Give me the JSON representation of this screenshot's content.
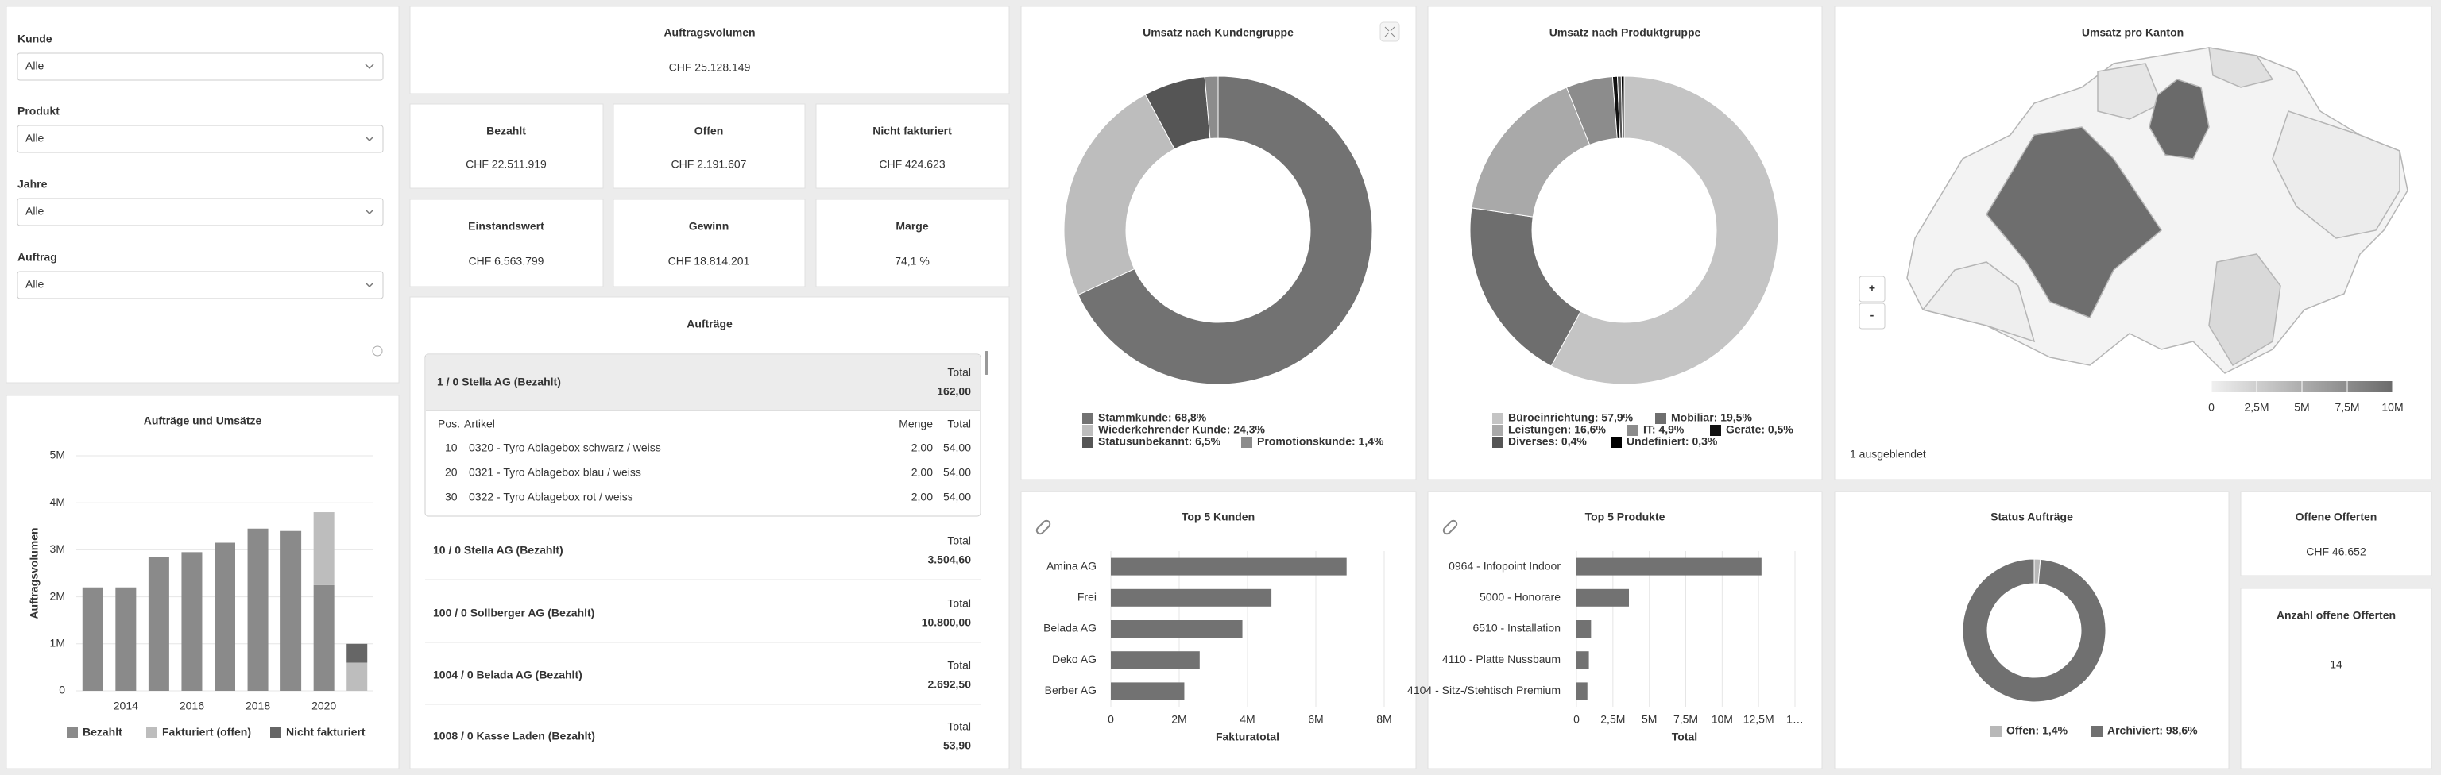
{
  "filters": [
    {
      "label": "Kunde",
      "placeholder": "Alle"
    },
    {
      "label": "Produkt",
      "placeholder": "Alle"
    },
    {
      "label": "Jahre",
      "placeholder": "Alle"
    },
    {
      "label": "Auftrag",
      "placeholder": "Alle"
    }
  ],
  "kpis": [
    {
      "title": "Auftragsvolumen",
      "value": "CHF 25.128.149"
    },
    {
      "title": "Bezahlt",
      "value": "CHF 22.511.919"
    },
    {
      "title": "Offen",
      "value": "CHF 2.191.607"
    },
    {
      "title": "Nicht fakturiert",
      "value": "CHF 424.623"
    },
    {
      "title": "Einstandswert",
      "value": "CHF 6.563.799"
    },
    {
      "title": "Gewinn",
      "value": "CHF 18.814.201"
    },
    {
      "title": "Marge",
      "value": "74,1 %"
    },
    {
      "title": "Offene Offerten",
      "value": "CHF 46.652"
    },
    {
      "title": "Anzahl offene Offerten",
      "value": 14
    }
  ],
  "orders": {
    "title": "Aufträge",
    "items": [
      {
        "title": "1 / 0 Stella AG (Bezahlt)",
        "total_label": "Total",
        "total": "162,00",
        "columns": [
          "Pos.",
          "Artikel",
          "Menge",
          "Total"
        ],
        "rows": [
          [
            "10",
            "0320 - Tyro Ablagebox schwarz / weiss",
            "2,00",
            "54,00"
          ],
          [
            "20",
            "0321 - Tyro Ablagebox blau / weiss",
            "2,00",
            "54,00"
          ],
          [
            "30",
            "0322 - Tyro Ablagebox rot / weiss",
            "2,00",
            "54,00"
          ]
        ]
      },
      {
        "title": "10 / 0 Stella AG (Bezahlt)",
        "total_label": "Total",
        "total": "3.504,60"
      },
      {
        "title": "100 / 0 Sollberger AG (Bezahlt)",
        "total_label": "Total",
        "total": "10.800,00"
      },
      {
        "title": "1004 / 0 Belada AG (Bezahlt)",
        "total_label": "Total",
        "total": "2.692,50"
      },
      {
        "title": "1008 / 0 Kasse Laden (Bezahlt)",
        "total_label": "Total",
        "total": "53,90"
      }
    ]
  },
  "charts": [
    {
      "type": "bar",
      "title": "Aufträge und Umsätze",
      "y_label": "Auftragsvolumen",
      "stacked": true,
      "grid": true,
      "categories": [
        null,
        "2014",
        null,
        "2016",
        null,
        "2018",
        null,
        "2020",
        null
      ],
      "series": [
        {
          "name": "Bezahlt",
          "color": "#8a8a8a",
          "values": [
            2200000,
            2200000,
            2850000,
            2950000,
            3150000,
            3450000,
            3400000,
            2250000,
            0
          ]
        },
        {
          "name": "Fakturiert (offen)",
          "color": "#bdbdbd",
          "values": [
            0,
            0,
            0,
            0,
            0,
            0,
            0,
            1550000,
            600000
          ]
        },
        {
          "name": "Nicht fakturiert",
          "color": "#666666",
          "values": [
            0,
            0,
            0,
            0,
            0,
            0,
            0,
            0,
            400000
          ]
        }
      ],
      "ylim": [
        0,
        5000000
      ],
      "yticks": [
        0,
        {
          "value": 1000000,
          "label": "1M"
        },
        {
          "value": 2000000,
          "label": "2M"
        },
        {
          "value": 3000000,
          "label": "3M"
        },
        {
          "value": 4000000,
          "label": "4M"
        },
        {
          "value": 5000000,
          "label": "5M"
        }
      ]
    },
    {
      "type": "pie",
      "donut": true,
      "title": "Umsatz nach Kundengruppe",
      "values": [
        68.8,
        24.3,
        6.5,
        1.4
      ],
      "labels": [
        "Stammkunde: 68,8%",
        "Wiederkehrender Kunde: 24,3%",
        "Statusunbekannt: 6,5%",
        "Promotionskunde: 1,4%"
      ],
      "colors": [
        "#727272",
        "#bdbdbd",
        "#555555",
        "#8c8c8c"
      ]
    },
    {
      "type": "pie",
      "donut": true,
      "title": "Umsatz nach Produktgruppe",
      "values": [
        57.9,
        19.5,
        16.6,
        4.9,
        0.5,
        0.4,
        0.3
      ],
      "labels": [
        "Büroeinrichtung: 57,9%",
        "Mobiliar: 19,5%",
        "Leistungen: 16,6%",
        "IT: 4,9%",
        "Geräte: 0,5%",
        "Diverses: 0,4%",
        "Undefiniert: 0,3%"
      ],
      "colors": [
        "#c4c4c4",
        "#6e6e6e",
        "#a9a9a9",
        "#8c8c8c",
        "#111111",
        "#555555",
        "#000000"
      ]
    },
    {
      "type": "map",
      "title": "Umsatz pro Kanton",
      "controls": [
        "+",
        "-"
      ],
      "note": "1 ausgeblendet",
      "colorbar": {
        "colors": [
          "#f0f0f0",
          "#6b6b6b"
        ],
        "lim": [
          0,
          10000000
        ],
        "ticks": [
          0,
          {
            "value": 2500000,
            "label": "2,5M"
          },
          {
            "value": 5000000,
            "label": "5M"
          },
          {
            "value": 7500000,
            "label": "7,5M"
          },
          {
            "value": 10000000,
            "label": "10M"
          }
        ]
      }
    },
    {
      "type": "hbar",
      "title": "Top 5 Kunden",
      "x_label": "Fakturatotal",
      "color": "#727272",
      "grid": true,
      "categories": [
        "Amina AG",
        "Frei",
        "Belada AG",
        "Deko AG",
        "Berber AG"
      ],
      "values": [
        6900000,
        4700000,
        3850000,
        2600000,
        2150000
      ],
      "xlim": [
        0,
        8000000
      ],
      "xticks": [
        0,
        {
          "value": 2000000,
          "label": "2M"
        },
        {
          "value": 4000000,
          "label": "4M"
        },
        {
          "value": 6000000,
          "label": "6M"
        },
        {
          "value": 8000000,
          "label": "8M"
        }
      ]
    },
    {
      "type": "hbar",
      "title": "Top 5 Produkte",
      "x_label": "Total",
      "color": "#727272",
      "grid": true,
      "categories": [
        "0964 - Infopoint Indoor",
        "5000 - Honorare",
        "6510 - Installation",
        "4110 - Platte Nussbaum",
        "4104 - Sitz-/Stehtisch Premium"
      ],
      "values": [
        12700000,
        3600000,
        1000000,
        850000,
        750000
      ],
      "xlim": [
        0,
        15000000
      ],
      "xticks": [
        0,
        {
          "value": 2500000,
          "label": "2,5M"
        },
        {
          "value": 5000000,
          "label": "5M"
        },
        {
          "value": 7500000,
          "label": "7,5M"
        },
        {
          "value": 10000000,
          "label": "10M"
        },
        {
          "value": 12500000,
          "label": "12,5M"
        },
        {
          "value": 15000000,
          "label": "1…"
        }
      ]
    },
    {
      "type": "pie",
      "donut": true,
      "title": "Status Aufträge",
      "values": [
        1.4,
        98.6
      ],
      "labels": [
        "Offen: 1,4%",
        "Archiviert: 98,6%"
      ],
      "colors": [
        "#b8b8b8",
        "#707070"
      ]
    }
  ]
}
